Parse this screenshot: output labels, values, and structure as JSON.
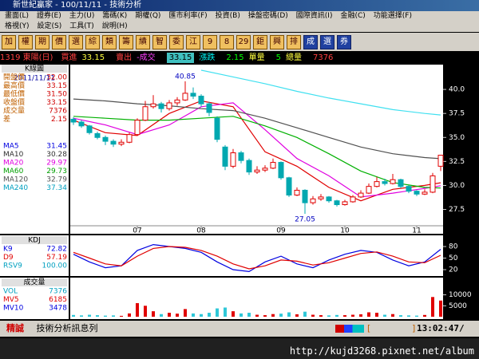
{
  "window": {
    "title": "新世紀贏家 - 100/11/11 - 技術分析",
    "menus": [
      "畫面(L)",
      "證券(E)",
      "主力(U)",
      "籌碼(K)",
      "期權(Q)",
      "匯市利率(F)",
      "投資(B)",
      "操盤密碼(D)",
      "國際資訊(I)",
      "金融(C)",
      "功能選擇(F)"
    ],
    "menus2": [
      "格視(Y)",
      "設定(S)",
      "工具(T)",
      "說明(H)"
    ],
    "toolbar": [
      "加",
      "權",
      "期",
      "價",
      "選",
      "綜",
      "類",
      "籌",
      "績",
      "智",
      "委",
      "江",
      "9",
      "8",
      "29",
      "鉅",
      "興",
      "排",
      "成",
      "選",
      "券"
    ]
  },
  "quote": {
    "symbol": "1319 東陽(日)",
    "items": [
      "買進",
      "33.15",
      "賣出",
      "-成交",
      "33.15",
      "漲跌",
      "2.15",
      "單量",
      "5",
      "總量",
      "7376"
    ]
  },
  "info": {
    "header": "K線圖",
    "date": "2011/11/11",
    "rows": [
      [
        "開盤價",
        "32.00"
      ],
      [
        "最高價",
        "33.15"
      ],
      [
        "最低價",
        "31.50"
      ],
      [
        "收盤價",
        "33.15"
      ],
      [
        "成交量",
        "7376"
      ],
      [
        "差",
        "2.15"
      ]
    ],
    "ma": [
      [
        "MA5",
        "31.45"
      ],
      [
        "MA10",
        "30.28"
      ],
      [
        "MA20",
        "29.97"
      ],
      [
        "MA60",
        "29.73"
      ],
      [
        "MA120",
        "32.79"
      ],
      [
        "MA240",
        "37.34"
      ]
    ]
  },
  "kd_info": {
    "header": "KDJ",
    "rows": [
      [
        "K9",
        "72.82"
      ],
      [
        "D9",
        "57.19"
      ],
      [
        "RSV9",
        "100.00"
      ]
    ]
  },
  "vol_info": {
    "header": "成交量",
    "rows": [
      [
        "VOL",
        "7376"
      ],
      [
        "MV5",
        "6185"
      ],
      [
        "MV10",
        "3478"
      ]
    ]
  },
  "chart_data": [
    {
      "type": "candlestick",
      "xlim": [
        -0.4,
        46.3
      ],
      "ylim": [
        25.8,
        42.5
      ],
      "yticks": [
        {
          "value": 40,
          "label": "40.0"
        },
        37.5,
        {
          "value": 35,
          "label": "35.0"
        },
        32.5,
        {
          "value": 30,
          "label": "30.0"
        },
        27.5
      ],
      "up_color": "#e00000",
      "down_color": "#00a8b0",
      "ohlc": [
        [
          36.9,
          37.1,
          36.3,
          36.6
        ],
        [
          36.6,
          36.8,
          36.0,
          36.2
        ],
        [
          36.2,
          36.3,
          35.3,
          35.5
        ],
        [
          35.4,
          35.6,
          34.8,
          35.0
        ],
        [
          35.0,
          35.2,
          34.2,
          34.6
        ],
        [
          34.6,
          34.8,
          34.0,
          34.3
        ],
        [
          34.3,
          34.8,
          34.1,
          34.5
        ],
        [
          34.5,
          35.5,
          34.4,
          35.3
        ],
        [
          35.3,
          37.0,
          35.2,
          36.8
        ],
        [
          36.8,
          38.8,
          36.7,
          38.2
        ],
        [
          38.2,
          39.4,
          38.0,
          38.5
        ],
        [
          38.5,
          38.7,
          37.6,
          38.0
        ],
        [
          38.0,
          38.9,
          37.8,
          38.6
        ],
        [
          38.6,
          39.2,
          38.3,
          38.9
        ],
        [
          38.9,
          40.85,
          38.8,
          39.6
        ],
        [
          39.6,
          40.2,
          39.0,
          39.3
        ],
        [
          39.3,
          39.5,
          38.2,
          38.5
        ],
        [
          38.5,
          38.7,
          37.2,
          37.6
        ],
        [
          37.0,
          37.2,
          34.5,
          34.8
        ],
        [
          34.0,
          34.2,
          31.6,
          32.0
        ],
        [
          32.0,
          33.8,
          31.8,
          33.4
        ],
        [
          33.4,
          33.6,
          32.3,
          32.6
        ],
        [
          32.6,
          32.8,
          31.1,
          31.4
        ],
        [
          31.4,
          32.0,
          31.2,
          31.6
        ],
        [
          31.6,
          32.1,
          31.4,
          31.8
        ],
        [
          31.8,
          32.8,
          31.7,
          32.4
        ],
        [
          32.4,
          32.5,
          30.6,
          30.8
        ],
        [
          30.8,
          30.9,
          28.8,
          29.0
        ],
        [
          29.0,
          29.8,
          28.9,
          29.5
        ],
        [
          29.5,
          29.6,
          27.05,
          28.2
        ],
        [
          28.2,
          28.9,
          28.0,
          28.6
        ],
        [
          28.6,
          29.1,
          28.4,
          28.8
        ],
        [
          28.8,
          28.9,
          28.2,
          28.4
        ],
        [
          28.4,
          28.5,
          27.8,
          28.0
        ],
        [
          28.0,
          28.5,
          27.9,
          28.3
        ],
        [
          28.3,
          29.0,
          28.2,
          28.8
        ],
        [
          28.8,
          29.5,
          28.7,
          29.2
        ],
        [
          29.2,
          30.2,
          29.1,
          29.9
        ],
        [
          29.9,
          30.9,
          29.8,
          30.4
        ],
        [
          30.4,
          30.7,
          30.0,
          30.2
        ],
        [
          30.2,
          31.2,
          30.1,
          30.6
        ],
        [
          30.6,
          30.7,
          29.7,
          29.9
        ],
        [
          29.9,
          30.0,
          29.2,
          29.4
        ],
        [
          29.4,
          29.5,
          28.9,
          29.1
        ],
        [
          29.1,
          29.6,
          29.0,
          29.3
        ],
        [
          29.3,
          31.3,
          29.2,
          31.0
        ],
        [
          32.0,
          33.15,
          31.5,
          33.15
        ]
      ],
      "x": [
        0,
        4,
        8,
        12,
        16,
        20,
        24,
        28,
        32,
        36,
        40,
        44,
        46
      ],
      "series": [
        {
          "color": "#e00000",
          "values": [
            36.8,
            35.5,
            35.2,
            37.5,
            38.8,
            38.2,
            33.5,
            32.0,
            29.8,
            28.4,
            29.6,
            30.0,
            30.28
          ]
        },
        {
          "color": "#e000e0",
          "values": [
            37.0,
            36.3,
            35.3,
            36.3,
            38.2,
            38.6,
            35.8,
            32.8,
            31.0,
            28.8,
            29.2,
            29.7,
            29.97
          ]
        },
        {
          "color": "#00b000",
          "values": [
            37.2,
            37.0,
            36.8,
            36.8,
            37.0,
            37.2,
            36.2,
            35.0,
            33.3,
            31.5,
            30.3,
            29.8,
            29.73
          ]
        },
        {
          "color": "#505050",
          "values": [
            39.0,
            38.8,
            38.5,
            38.3,
            38.0,
            37.8,
            37.0,
            36.0,
            35.0,
            34.0,
            33.3,
            32.9,
            32.79
          ]
        },
        {
          "color": "#40e0f0",
          "values": [
            null,
            null,
            null,
            null,
            42.0,
            41.3,
            40.6,
            39.8,
            39.1,
            38.5,
            37.9,
            37.5,
            37.34
          ]
        }
      ],
      "x_labels": [
        {
          "label": "07",
          "at": 8
        },
        {
          "label": "08",
          "at": 16
        },
        {
          "label": "09",
          "at": 26
        },
        {
          "label": "10",
          "at": 34
        },
        {
          "label": "11",
          "at": 43
        }
      ],
      "annotations": [
        {
          "text": "40.85",
          "at": 14
        },
        {
          "text": "27.05",
          "at": 29
        }
      ]
    },
    {
      "type": "line",
      "xlim": [
        -0.4,
        46.3
      ],
      "ylim": [
        5.5,
        107
      ],
      "yticks": [
        20,
        50,
        80
      ],
      "x": [
        0,
        2,
        4,
        6,
        8,
        10,
        12,
        14,
        16,
        18,
        20,
        22,
        24,
        26,
        28,
        30,
        32,
        34,
        36,
        38,
        40,
        42,
        44,
        46
      ],
      "series": [
        {
          "color": "#0000e0",
          "values": [
            60,
            40,
            25,
            30,
            70,
            85,
            80,
            75,
            65,
            40,
            20,
            15,
            40,
            55,
            35,
            25,
            45,
            60,
            70,
            65,
            45,
            30,
            40,
            72.82
          ]
        },
        {
          "color": "#e00000",
          "values": [
            65,
            50,
            35,
            30,
            55,
            75,
            80,
            78,
            70,
            55,
            35,
            22,
            30,
            45,
            42,
            32,
            38,
            50,
            62,
            66,
            55,
            40,
            38,
            57.19
          ]
        }
      ]
    },
    {
      "type": "bar",
      "xlim": [
        -0.4,
        46.3
      ],
      "ylim": [
        0,
        17500
      ],
      "yticks": [
        5000,
        10000
      ],
      "color": "#30c8d8",
      "values": [
        800,
        600,
        900,
        700,
        500,
        600,
        400,
        1500,
        6200,
        5000,
        2500,
        1200,
        1800,
        1400,
        3500,
        1500,
        1200,
        1800,
        3800,
        4200,
        2500,
        1500,
        1800,
        900,
        700,
        1200,
        1400,
        2000,
        1100,
        2300,
        900,
        700,
        600,
        800,
        700,
        900,
        1100,
        2000,
        1800,
        900,
        1200,
        700,
        600,
        500,
        800,
        9000,
        7376
      ]
    }
  ],
  "status": {
    "brand": "精誠",
    "message": "技術分析訊息列",
    "bracket_open": "[",
    "bracket_close": "]",
    "time": "13:02:47/"
  },
  "watermark": "http://kujd3268.pixnet.net/album"
}
